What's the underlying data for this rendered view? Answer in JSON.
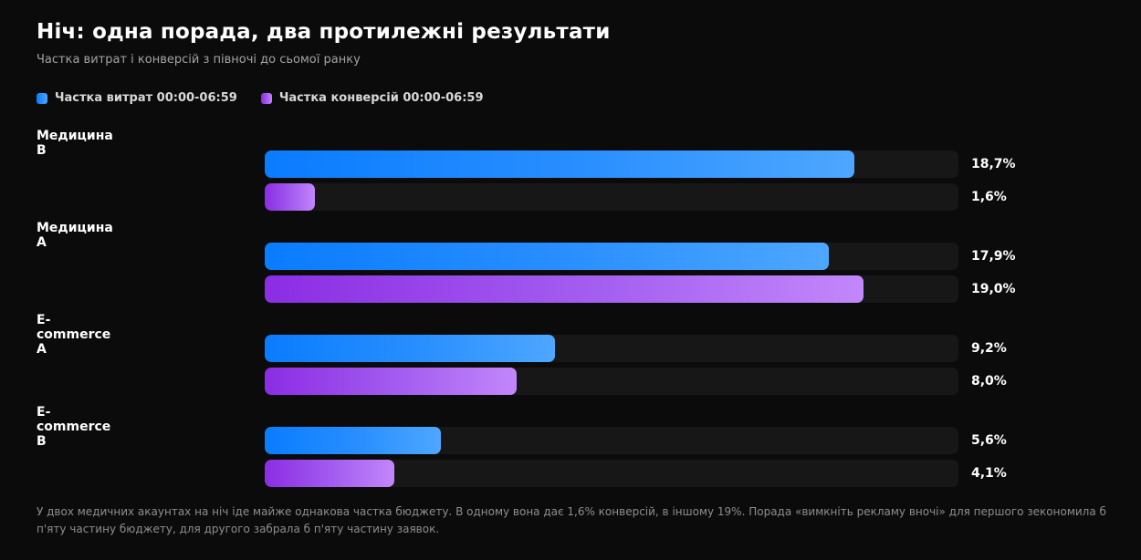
{
  "header": {
    "title": "Ніч: одна порада, два протилежні результати",
    "subtitle": "Частка витрат і конверсій з півночі до сьомої ранку"
  },
  "legend": {
    "spend": "Частка витрат 00:00-06:59",
    "conversions": "Частка конверсій 00:00-06:59"
  },
  "colors": {
    "background": "#0b0b0b",
    "spend": "#0a7cff",
    "conversions": "#8b2de4",
    "track": "#171717"
  },
  "chart_data": {
    "type": "bar",
    "orientation": "horizontal",
    "title": "Ніч: одна порада, два протилежні результати",
    "subtitle": "Частка витрат і конверсій з півночі до сьомої ранку",
    "categories": [
      "Медицина B",
      "Медицина A",
      "E-commerce A",
      "E-commerce B"
    ],
    "series": [
      {
        "name": "Частка витрат 00:00-06:59",
        "values": [
          18.7,
          17.9,
          9.2,
          5.6
        ],
        "labels": [
          "18,7%",
          "17,9%",
          "9,2%",
          "5,6%"
        ]
      },
      {
        "name": "Частка конверсій 00:00-06:59",
        "values": [
          1.6,
          19.0,
          8.0,
          4.1
        ],
        "labels": [
          "1,6%",
          "19,0%",
          "8,0%",
          "4,1%"
        ]
      }
    ],
    "xlim": [
      0,
      22
    ],
    "legend": "top-left",
    "grid": false
  },
  "footnote": "У двох медичних акаунтах на ніч іде майже однакова частка бюджету. В одному вона дає 1,6% конверсій, в іншому 19%. Порада «вимкніть рекламу вночі» для першого зекономила б п'яту частину бюджету, для другого забрала б п'яту частину заявок."
}
